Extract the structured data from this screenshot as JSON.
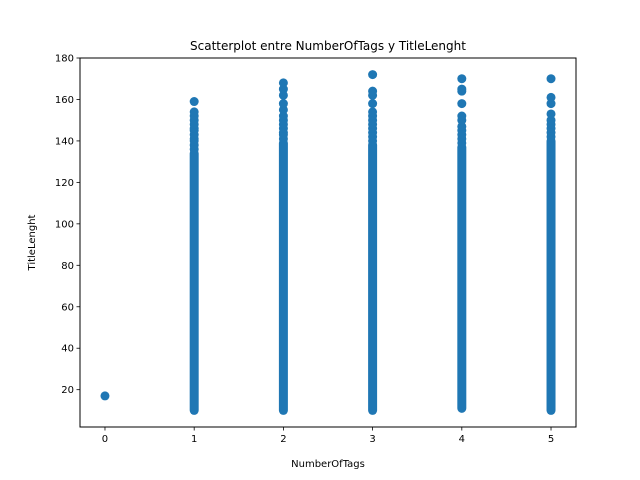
{
  "chart_data": {
    "type": "scatter",
    "title": "Scatterplot entre NumberOfTags y TitleLenght",
    "xlabel": "NumberOfTags",
    "ylabel": "TitleLenght",
    "xlim": [
      -0.28,
      5.28
    ],
    "ylim": [
      2,
      180
    ],
    "xticks": [
      0,
      1,
      2,
      3,
      4,
      5
    ],
    "yticks": [
      20,
      40,
      60,
      80,
      100,
      120,
      140,
      160,
      180
    ],
    "grid": false,
    "marker_color": "#1f77b4",
    "series": [
      {
        "columns": [
          {
            "x": 0,
            "values": [
              17
            ]
          },
          {
            "x": 1,
            "range": [
              10,
              134
            ],
            "values": [
              136,
              138,
              140,
              141,
              143,
              145,
              146,
              148,
              150,
              152,
              154,
              159
            ]
          },
          {
            "x": 2,
            "range": [
              10,
              139
            ],
            "values": [
              141,
              143,
              144,
              146,
              148,
              150,
              152,
              155,
              158,
              162,
              165,
              168
            ]
          },
          {
            "x": 3,
            "range": [
              10,
              138
            ],
            "values": [
              140,
              142,
              144,
              146,
              148,
              150,
              152,
              154,
              158,
              162,
              164,
              172
            ]
          },
          {
            "x": 4,
            "range": [
              11,
              137
            ],
            "values": [
              139,
              141,
              143,
              145,
              147,
              150,
              152,
              158,
              164,
              165,
              170
            ]
          },
          {
            "x": 5,
            "range": [
              10,
              140
            ],
            "values": [
              142,
              144,
              146,
              148,
              150,
              153,
              158,
              161,
              170
            ]
          }
        ]
      }
    ]
  }
}
